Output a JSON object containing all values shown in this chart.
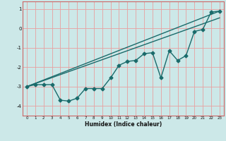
{
  "title": "",
  "xlabel": "Humidex (Indice chaleur)",
  "ylabel": "",
  "bg_color": "#cce8e8",
  "grid_color": "#e8a0a0",
  "spine_color": "#cc6666",
  "line_color": "#1a6b6b",
  "xlim": [
    -0.5,
    23.5
  ],
  "ylim": [
    -4.5,
    1.4
  ],
  "yticks": [
    1,
    0,
    -1,
    -2,
    -3,
    -4
  ],
  "xticks": [
    0,
    1,
    2,
    3,
    4,
    5,
    6,
    7,
    8,
    9,
    10,
    11,
    12,
    13,
    14,
    15,
    16,
    17,
    18,
    19,
    20,
    21,
    22,
    23
  ],
  "data_x": [
    0,
    1,
    2,
    3,
    4,
    5,
    6,
    7,
    8,
    9,
    10,
    11,
    12,
    13,
    14,
    15,
    16,
    17,
    18,
    19,
    20,
    21,
    22,
    23
  ],
  "data_y": [
    -3.0,
    -2.9,
    -2.9,
    -2.9,
    -3.7,
    -3.75,
    -3.6,
    -3.1,
    -3.1,
    -3.1,
    -2.55,
    -1.9,
    -1.7,
    -1.65,
    -1.3,
    -1.25,
    -2.55,
    -1.15,
    -1.65,
    -1.4,
    -0.15,
    -0.05,
    0.85,
    0.9
  ],
  "line1_x": [
    0,
    23
  ],
  "line1_y": [
    -3.0,
    0.9
  ],
  "line2_x": [
    0,
    23
  ],
  "line2_y": [
    -3.0,
    0.55
  ],
  "marker": "D",
  "markersize": 2.5,
  "linewidth": 1.0
}
